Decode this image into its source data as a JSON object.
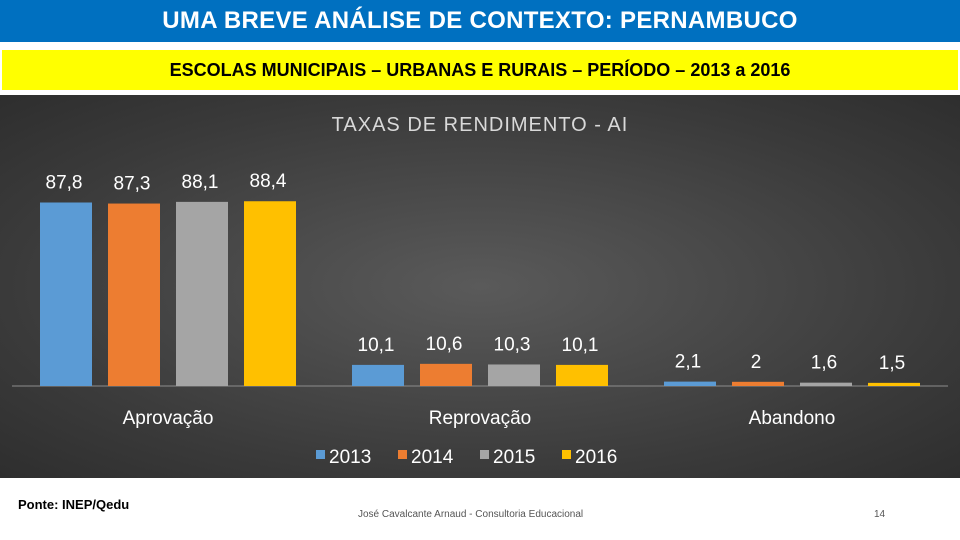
{
  "slide": {
    "title": "UMA BREVE ANÁLISE DE CONTEXTO: PERNAMBUCO",
    "subtitle": "ESCOLAS MUNICIPAIS – URBANAS E RURAIS – PERÍODO – 2013 a 2016",
    "source": "Ponte: INEP/Qedu",
    "author": "José Cavalcante Arnaud - Consultoria Educacional",
    "page_number": "14"
  },
  "colors": {
    "title_bg": "#0070c0",
    "subtitle_bg": "#ffff00",
    "chart_bg": "#404040"
  },
  "chart_data": {
    "type": "bar",
    "title": "TAXAS DE RENDIMENTO - AI",
    "categories": [
      "Aprovação",
      "Reprovação",
      "Abandono"
    ],
    "series": [
      {
        "name": "2013",
        "color": "#5b9bd5",
        "values": [
          87.8,
          10.1,
          2.1
        ],
        "labels": [
          "87,8",
          "10,1",
          "2,1"
        ]
      },
      {
        "name": "2014",
        "color": "#ed7d31",
        "values": [
          87.3,
          10.6,
          2
        ],
        "labels": [
          "87,3",
          "10,6",
          "2"
        ]
      },
      {
        "name": "2015",
        "color": "#a5a5a5",
        "values": [
          88.1,
          10.3,
          1.6
        ],
        "labels": [
          "88,1",
          "10,3",
          "1,6"
        ]
      },
      {
        "name": "2016",
        "color": "#ffc000",
        "values": [
          88.4,
          10.1,
          1.5
        ],
        "labels": [
          "88,4",
          "10,1",
          "1,5"
        ]
      }
    ],
    "ylim": [
      0,
      100
    ],
    "grid": false,
    "legend_position": "bottom"
  }
}
